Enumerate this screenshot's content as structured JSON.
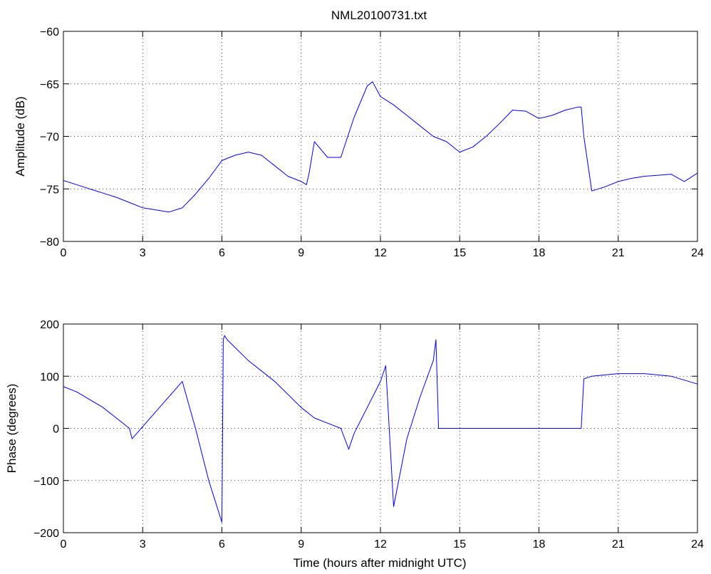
{
  "figure": {
    "title": "NML20100731.txt",
    "xlabel": "Time (hours after midnight UTC)"
  },
  "chart_data": [
    {
      "type": "line",
      "title": "NML20100731.txt",
      "xlabel": "",
      "ylabel": "Amplitude (dB)",
      "xlim": [
        0,
        24
      ],
      "ylim": [
        -80,
        -60
      ],
      "xticks": [
        0,
        3,
        6,
        9,
        12,
        15,
        18,
        21,
        24
      ],
      "yticks": [
        -80,
        -75,
        -70,
        -65,
        -60
      ],
      "grid": true,
      "series": [
        {
          "color": "#0000ff",
          "x": [
            0,
            0.5,
            1,
            1.5,
            2,
            2.5,
            3,
            3.5,
            4,
            4.5,
            5,
            5.5,
            6,
            6.5,
            7,
            7.5,
            8,
            8.5,
            9,
            9.2,
            9.3,
            9.5,
            10,
            10.5,
            11,
            11.5,
            11.7,
            12,
            12.5,
            13,
            13.5,
            14,
            14.5,
            15,
            15.5,
            16,
            16.5,
            17,
            17.5,
            18,
            18.5,
            19,
            19.5,
            19.6,
            19.7,
            20,
            20.5,
            21,
            21.5,
            22,
            22.5,
            23,
            23.5,
            24
          ],
          "y": [
            -74.2,
            -74.6,
            -75,
            -75.4,
            -75.8,
            -76.3,
            -76.8,
            -77,
            -77.2,
            -76.8,
            -75.5,
            -74,
            -72.3,
            -71.8,
            -71.5,
            -71.8,
            -72.8,
            -73.8,
            -74.3,
            -74.6,
            -73.5,
            -70.5,
            -72.0,
            -72.0,
            -68.2,
            -65.2,
            -64.8,
            -66.2,
            -67.0,
            -68.0,
            -69.0,
            -70.0,
            -70.5,
            -71.5,
            -71.0,
            -70.0,
            -68.8,
            -67.5,
            -67.6,
            -68.3,
            -68.0,
            -67.5,
            -67.2,
            -67.2,
            -70.0,
            -75.2,
            -74.8,
            -74.3,
            -74.0,
            -73.8,
            -73.7,
            -73.6,
            -74.3,
            -73.5
          ]
        }
      ]
    },
    {
      "type": "line",
      "title": "",
      "xlabel": "Time (hours after midnight UTC)",
      "ylabel": "Phase (degrees)",
      "xlim": [
        0,
        24
      ],
      "ylim": [
        -200,
        200
      ],
      "xticks": [
        0,
        3,
        6,
        9,
        12,
        15,
        18,
        21,
        24
      ],
      "yticks": [
        -200,
        -100,
        0,
        100,
        200
      ],
      "grid": true,
      "series": [
        {
          "color": "#0000ff",
          "x": [
            0,
            0.5,
            1,
            1.5,
            2,
            2.5,
            2.6,
            4.5,
            5,
            5.5,
            6.0,
            6.05,
            6.1,
            6.2,
            7,
            8,
            9,
            9.5,
            10,
            10.5,
            10.8,
            11,
            11.5,
            12,
            12.2,
            12.5,
            13,
            13.5,
            14,
            14.1,
            14.2,
            19.6,
            19.7,
            20,
            21,
            22,
            23,
            24
          ],
          "y": [
            80,
            70,
            55,
            40,
            20,
            0,
            -20,
            90,
            0,
            -100,
            -180,
            170,
            178,
            170,
            130,
            90,
            40,
            20,
            10,
            0,
            -40,
            -10,
            40,
            90,
            120,
            -150,
            -20,
            60,
            130,
            170,
            0,
            0,
            95,
            100,
            105,
            105,
            100,
            85
          ]
        }
      ]
    }
  ]
}
